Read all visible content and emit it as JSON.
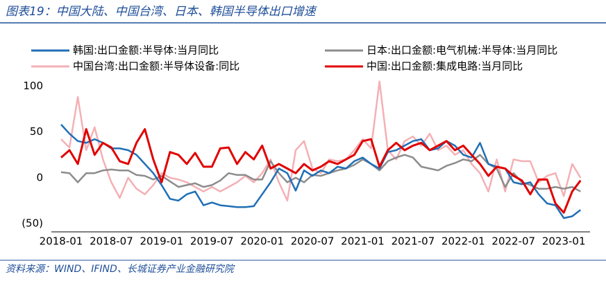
{
  "chart_data": {
    "type": "line",
    "title": "图表19：中国大陆、中国台湾、日本、韩国半导体出口增速",
    "source": "资料来源：WIND、IFIND、长城证券产业金融研究院",
    "categories": [
      "2018-01",
      null,
      null,
      null,
      null,
      null,
      "2018-07",
      null,
      null,
      null,
      null,
      null,
      "2019-01",
      null,
      null,
      null,
      null,
      null,
      "2019-07",
      null,
      null,
      null,
      null,
      null,
      "2020-01",
      null,
      null,
      null,
      null,
      null,
      "2020-07",
      null,
      null,
      null,
      null,
      null,
      "2021-01",
      null,
      null,
      null,
      null,
      null,
      "2021-07",
      null,
      null,
      null,
      null,
      null,
      "2022-01",
      null,
      null,
      null,
      null,
      null,
      "2022-07",
      null,
      null,
      null,
      null,
      null,
      "2023-01",
      null,
      null
    ],
    "series": [
      {
        "name": "韩国:出口金额:半导体:当月同比",
        "color": "#1f6fb5",
        "values": [
          58,
          48,
          40,
          38,
          42,
          38,
          32,
          32,
          30,
          25,
          15,
          5,
          -8,
          -23,
          -25,
          -18,
          -15,
          -30,
          -27,
          -30,
          -31,
          -32,
          -32,
          -31,
          -18,
          -5,
          10,
          5,
          -14,
          8,
          2,
          8,
          5,
          12,
          10,
          18,
          22,
          15,
          10,
          28,
          30,
          35,
          40,
          42,
          30,
          32,
          40,
          35,
          25,
          22,
          38,
          15,
          12,
          10,
          -5,
          -7,
          -5,
          -18,
          -28,
          -30,
          -44,
          -42,
          -35
        ]
      },
      {
        "name": "日本:出口金额:电气机械:半导体:当月同比",
        "color": "#8c8c8c",
        "values": [
          6,
          5,
          -5,
          5,
          5,
          8,
          9,
          8,
          8,
          3,
          2,
          -2,
          2,
          -4,
          -10,
          -8,
          -6,
          -10,
          -8,
          -3,
          5,
          3,
          3,
          -2,
          -2,
          18,
          5,
          -5,
          0,
          -5,
          3,
          2,
          5,
          8,
          10,
          14,
          20,
          15,
          8,
          18,
          22,
          25,
          22,
          12,
          10,
          8,
          13,
          16,
          20,
          18,
          25,
          15,
          10,
          -10,
          5,
          -5,
          -8,
          -12,
          -12,
          -10,
          -12,
          -10,
          -15
        ]
      },
      {
        "name": "中国台湾:出口金额:半导体设备:同比",
        "color": "#f4b0b5",
        "values": [
          42,
          33,
          88,
          30,
          55,
          20,
          -5,
          -22,
          0,
          -12,
          -18,
          -8,
          5,
          0,
          -2,
          -5,
          -10,
          -15,
          -10,
          -15,
          -10,
          -5,
          2,
          -5,
          5,
          20,
          -5,
          -25,
          30,
          40,
          10,
          5,
          20,
          18,
          20,
          30,
          42,
          32,
          105,
          30,
          20,
          40,
          45,
          35,
          48,
          30,
          35,
          25,
          30,
          15,
          5,
          -15,
          20,
          -15,
          20,
          18,
          18,
          -5,
          2,
          5,
          -20,
          15,
          0
        ]
      },
      {
        "name": "中国:出口金额:集成电路:当月同比",
        "color": "#e00000",
        "values": [
          22,
          30,
          15,
          53,
          25,
          38,
          33,
          18,
          15,
          38,
          53,
          20,
          -5,
          28,
          25,
          15,
          27,
          12,
          12,
          32,
          33,
          15,
          28,
          20,
          35,
          10,
          15,
          10,
          5,
          15,
          8,
          12,
          18,
          15,
          20,
          25,
          40,
          42,
          12,
          30,
          38,
          30,
          35,
          38,
          30,
          35,
          40,
          30,
          35,
          25,
          15,
          2,
          12,
          10,
          2,
          -3,
          -18,
          -2,
          -2,
          -28,
          -38,
          -15,
          -3
        ]
      }
    ],
    "ylim": [
      -59,
      110
    ],
    "yticks": [
      100,
      50,
      0,
      {
        "value": -50,
        "label": "(50)"
      }
    ],
    "grid": false
  }
}
